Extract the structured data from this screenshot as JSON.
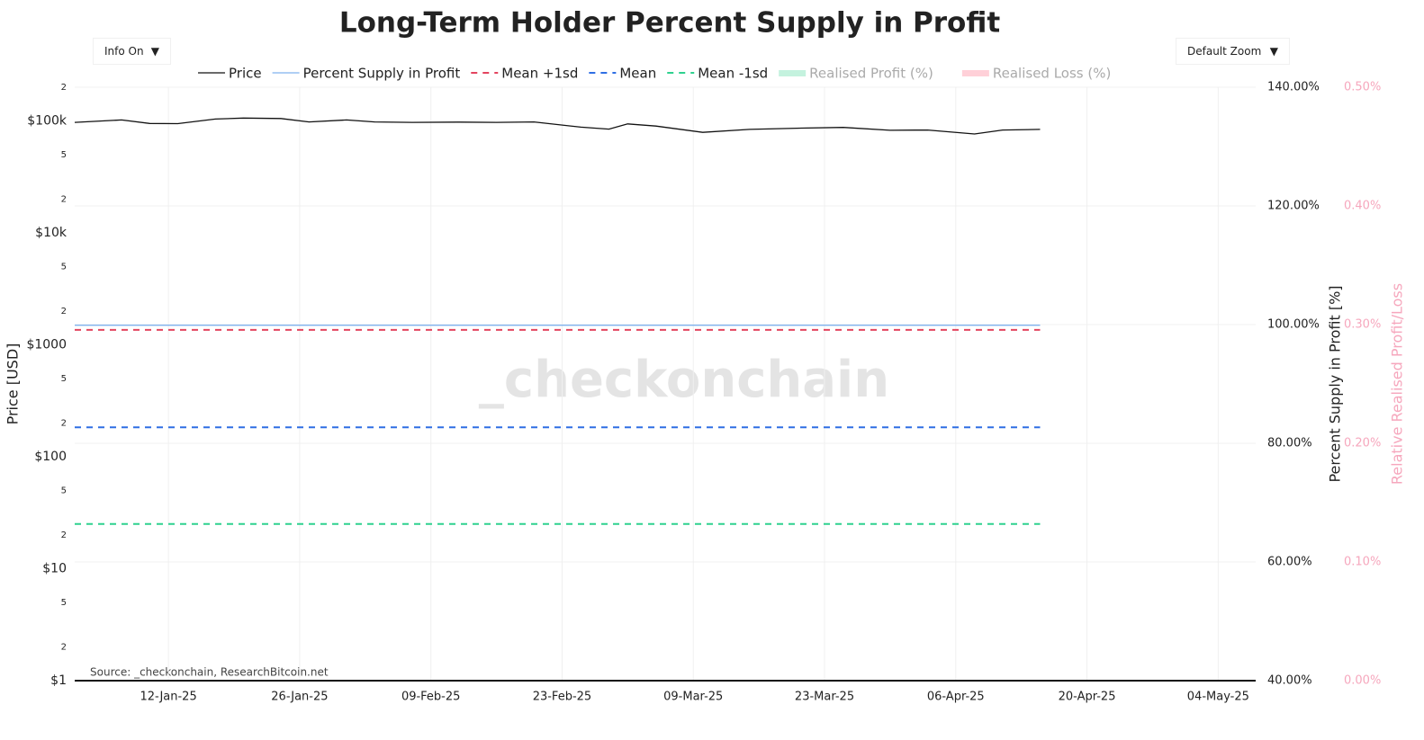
{
  "controls": {
    "info": "Info On",
    "zoom": "Default Zoom"
  },
  "chart_data": {
    "type": "line",
    "title": "Long-Term Holder Percent Supply in Profit",
    "watermark": "_checkonchain",
    "source": "Source: _checkonchain, ResearchBitcoin.net",
    "ylabel": "Price [USD]",
    "y2label": "Percent Supply in Profit [%]",
    "y3label": "Relative Realised Profit/Loss",
    "log_y": true,
    "grid": true,
    "xlim": [
      "2025-01-02",
      "2025-05-08"
    ],
    "xticks": [
      {
        "value": "2025-01-12",
        "label": "12-Jan-25"
      },
      {
        "value": "2025-01-26",
        "label": "26-Jan-25"
      },
      {
        "value": "2025-02-09",
        "label": "09-Feb-25"
      },
      {
        "value": "2025-02-23",
        "label": "23-Feb-25"
      },
      {
        "value": "2025-03-09",
        "label": "09-Mar-25"
      },
      {
        "value": "2025-03-23",
        "label": "23-Mar-25"
      },
      {
        "value": "2025-04-06",
        "label": "06-Apr-25"
      },
      {
        "value": "2025-04-20",
        "label": "20-Apr-25"
      },
      {
        "value": "2025-05-04",
        "label": "04-May-25"
      }
    ],
    "ylim": [
      1,
      200000
    ],
    "yticks": [
      {
        "value": 1,
        "label": "$1"
      },
      2,
      5,
      {
        "value": 10,
        "label": "$10"
      },
      {
        "value": 20,
        "label": "2"
      },
      {
        "value": 50,
        "label": "5"
      },
      {
        "value": 100,
        "label": "$100"
      },
      {
        "value": 200,
        "label": "2"
      },
      {
        "value": 500,
        "label": "5"
      },
      {
        "value": 1000,
        "label": "$1000"
      },
      {
        "value": 2000,
        "label": "2"
      },
      {
        "value": 5000,
        "label": "5"
      },
      {
        "value": 10000,
        "label": "$10k"
      },
      {
        "value": 20000,
        "label": "2"
      },
      {
        "value": 50000,
        "label": "5"
      },
      {
        "value": 100000,
        "label": "$100k"
      },
      {
        "value": 200000,
        "label": "2"
      }
    ],
    "y2lim": [
      40,
      140
    ],
    "y2ticks": [
      {
        "value": 40,
        "label": "40.00%"
      },
      {
        "value": 60,
        "label": "60.00%"
      },
      {
        "value": 80,
        "label": "80.00%"
      },
      {
        "value": 100,
        "label": "100.00%"
      },
      {
        "value": 120,
        "label": "120.00%"
      },
      {
        "value": 140,
        "label": "140.00%"
      }
    ],
    "y3lim": [
      0,
      0.5
    ],
    "y3ticks": [
      {
        "value": 0,
        "label": "0.00%"
      },
      {
        "value": 0.1,
        "label": "0.10%"
      },
      {
        "value": 0.2,
        "label": "0.20%"
      },
      {
        "value": 0.3,
        "label": "0.30%"
      },
      {
        "value": 0.4,
        "label": "0.40%"
      },
      {
        "value": 0.5,
        "label": "0.50%"
      }
    ],
    "series": [
      {
        "name": "Price",
        "color": "#111111",
        "axis": "y",
        "x": [
          "2025-01-02",
          "2025-01-07",
          "2025-01-10",
          "2025-01-13",
          "2025-01-17",
          "2025-01-20",
          "2025-01-24",
          "2025-01-27",
          "2025-01-31",
          "2025-02-03",
          "2025-02-07",
          "2025-02-12",
          "2025-02-16",
          "2025-02-20",
          "2025-02-25",
          "2025-02-28",
          "2025-03-02",
          "2025-03-05",
          "2025-03-10",
          "2025-03-15",
          "2025-03-20",
          "2025-03-25",
          "2025-03-30",
          "2025-04-03",
          "2025-04-08",
          "2025-04-11",
          "2025-04-15"
        ],
        "values": [
          97000,
          102000,
          95000,
          94500,
          104000,
          106000,
          105000,
          98000,
          102000,
          98000,
          97000,
          97500,
          97000,
          98000,
          88000,
          84500,
          94000,
          90000,
          79000,
          84000,
          86000,
          87500,
          82500,
          83000,
          76500,
          83000,
          84000
        ]
      },
      {
        "name": "Percent Supply in Profit",
        "color": "#7fb2ee",
        "axis": "y2",
        "x": [
          "2025-01-02",
          "2025-02-01",
          "2025-03-01",
          "2025-04-01",
          "2025-04-15"
        ],
        "values": [
          99.9,
          99.9,
          99.9,
          99.9,
          99.9
        ]
      },
      {
        "name": "Mean +1sd",
        "color": "#e3445f",
        "axis": "y2",
        "dashed": true,
        "x": [
          "2025-01-02",
          "2025-04-15"
        ],
        "values": [
          99.1,
          99.1
        ]
      },
      {
        "name": "Mean",
        "color": "#2f6fe4",
        "axis": "y2",
        "dashed": true,
        "x": [
          "2025-01-02",
          "2025-04-15"
        ],
        "values": [
          82.7,
          82.7
        ]
      },
      {
        "name": "Mean -1sd",
        "color": "#2fd18f",
        "axis": "y2",
        "dashed": true,
        "x": [
          "2025-01-02",
          "2025-04-15"
        ],
        "values": [
          66.4,
          66.4
        ]
      },
      {
        "name": "Realised Profit (%)",
        "color": "#c4f2de",
        "axis": "y3",
        "x": [],
        "values": []
      },
      {
        "name": "Realised Loss (%)",
        "color": "#ffd0d8",
        "axis": "y3",
        "x": [],
        "values": []
      }
    ]
  }
}
